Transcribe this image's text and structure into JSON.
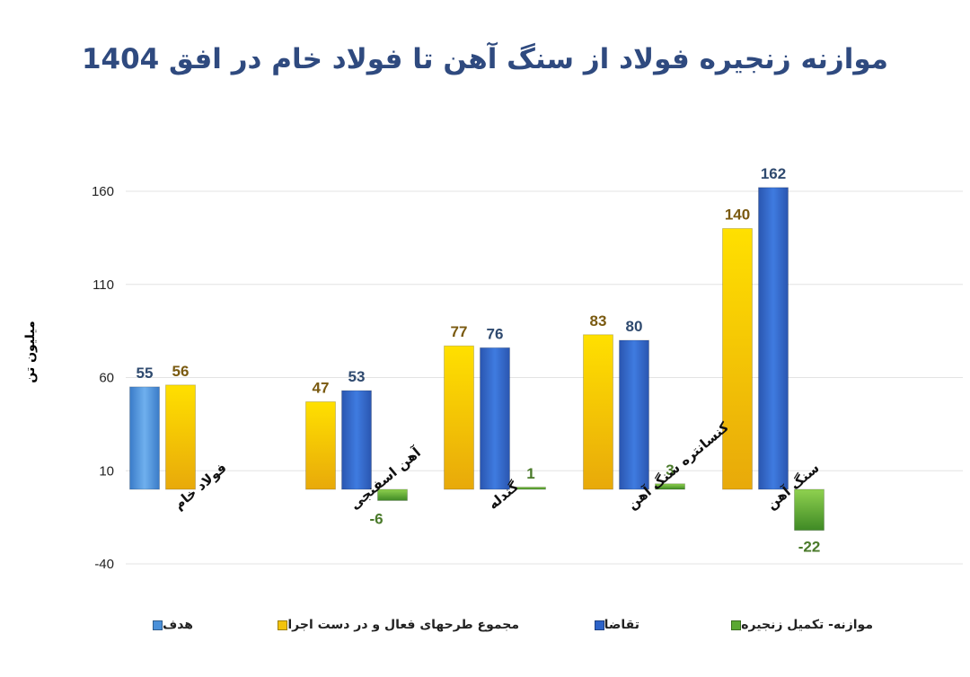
{
  "colors": {
    "target": "#4a90d9",
    "projects": "#f2c30d",
    "demand": "#2d63c8",
    "balance": "#5aa832",
    "label_projects": "#7a5a10",
    "label_demand": "#2f4a6f",
    "label_balance": "#4a7a2a",
    "label_target": "#2f4a6f",
    "grid": "#e3e3e3"
  },
  "chart_data": {
    "type": "bar",
    "title": "موازنه زنجیره فولاد از سنگ آهن تا فولاد خام در افق 1404",
    "ylabel": "میلیون تن",
    "xlabel": "",
    "ylim": [
      -40,
      175
    ],
    "yticks": [
      -40,
      10,
      60,
      110,
      160
    ],
    "yticklabels": [
      "-40",
      "10",
      "60",
      "110",
      "160"
    ],
    "grid": true,
    "legend_position": "bottom",
    "categories": [
      "فولاد خام",
      "آهن اسفنجی",
      "گندله",
      "کنسانتره سنگ آهن",
      "سنگ آهن"
    ],
    "series": [
      {
        "name": "هدف",
        "key": "target",
        "values": [
          55,
          null,
          null,
          null,
          null
        ]
      },
      {
        "name": "مجموع طرحهای فعال و در دست اجرا",
        "key": "projects",
        "values": [
          56,
          47,
          77,
          83,
          140
        ]
      },
      {
        "name": "تقاضا",
        "key": "demand",
        "values": [
          null,
          53,
          76,
          80,
          162
        ]
      },
      {
        "name": "موازنه- تکمیل زنجیره",
        "key": "balance",
        "values": [
          null,
          -6,
          1,
          3,
          -22
        ]
      }
    ]
  }
}
